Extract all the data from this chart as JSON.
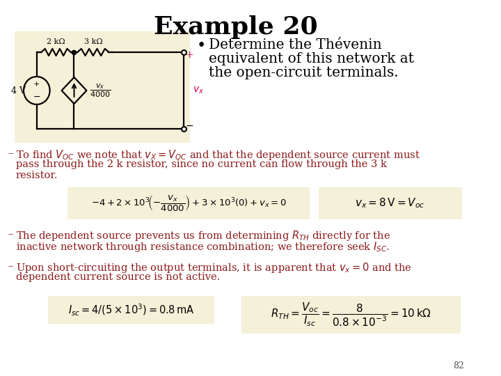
{
  "title": "Example 20",
  "title_fontsize": 26,
  "title_fontweight": "bold",
  "bg_color": "#ffffff",
  "circuit_bg": "#f5f0d8",
  "text_color_dark_red": "#8b1a1a",
  "cc": "#000000",
  "magenta": "#cc0055",
  "page_num": "82",
  "bullet_text_line1": "Determine the Thévenin",
  "bullet_text_line2": "equivalent of this network at",
  "bullet_text_line3": "the open-circuit terminals.",
  "body1_line1": "To find $V_{OC}$ we note that $v_X = V_{OC}$ and that the dependent source current must",
  "body1_line2": "pass through the 2 k resistor, since no current can flow through the 3 k",
  "body1_line3": "resistor.",
  "eq1_text": "$-4 + 2 \\times 10^3\\!\\left(-\\dfrac{v_x}{4000}\\right) + 3 \\times 10^3(0) + v_x = 0$",
  "eq1r_text": "$v_x = 8\\,\\mathrm{V} = V_{oc}$",
  "body2_line1": "The dependent source prevents us from determining $R_{TH}$ directly for the",
  "body2_line2": "inactive network through resistance combination; we therefore seek $I_{SC}$.",
  "body3_line1": "Upon short-circuiting the output terminals, it is apparent that $v_x = 0$ and the",
  "body3_line2": "dependent current source is not active.",
  "eq2_text": "$I_{sc} = 4/(5 \\times 10^3) = 0.8\\,\\mathrm{mA}$",
  "eq3_text": "$R_{TH} = \\dfrac{V_{oc}}{I_{sc}} = \\dfrac{8}{0.8 \\times 10^{-3}} = 10\\,\\mathrm{k\\Omega}$",
  "res1_label": "2 kΩ",
  "res2_label": "3 kΩ",
  "vsrc_label": "4 V",
  "dep_label": "$\\dfrac{v_x}{4000}$",
  "vx_label": "$v_x$"
}
